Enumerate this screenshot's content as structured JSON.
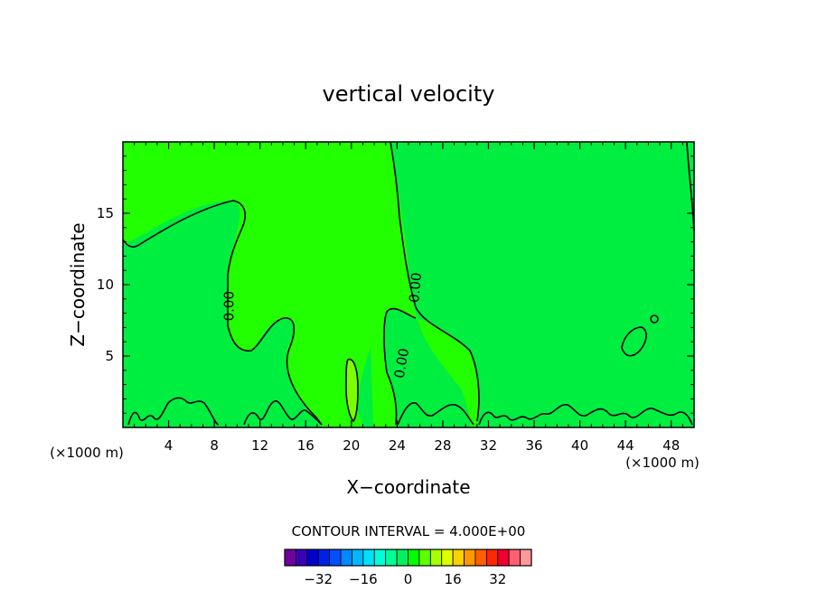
{
  "chart_data": {
    "type": "contour",
    "title": "vertical velocity",
    "xlabel": "X−coordinate",
    "ylabel": "Z−coordinate",
    "x_unit_left": "(×1000 m)",
    "x_unit_right": "(×1000 m)",
    "xlim": [
      0,
      50
    ],
    "ylim": [
      0,
      20
    ],
    "x_ticks": [
      4,
      8,
      12,
      16,
      20,
      24,
      28,
      32,
      36,
      40,
      44,
      48
    ],
    "x_tick_labels": [
      "4",
      "8",
      "12",
      "16",
      "20",
      "24",
      "28",
      "32",
      "36",
      "40",
      "44",
      "48"
    ],
    "y_ticks": [
      5,
      10,
      15
    ],
    "y_tick_labels": [
      "5",
      "10",
      "15"
    ],
    "contour_interval_label": "CONTOUR INTERVAL = 4.000E+00",
    "contour_labels": [
      {
        "text": "0.00",
        "x": 9.3,
        "y": 8.5,
        "angle": -90
      },
      {
        "text": "0.00",
        "x": 25.6,
        "y": 9.8,
        "angle": -85
      },
      {
        "text": "0.00",
        "x": 24.4,
        "y": 4.5,
        "angle": -80
      }
    ],
    "fill_colors": {
      "background_band": "#00ee40",
      "core_band": "#22ff00",
      "plume_band": "#7cff00"
    },
    "colorbar": {
      "colors": [
        "#7000a0",
        "#3a00b8",
        "#0000cc",
        "#0020e8",
        "#0050ff",
        "#0088ff",
        "#00b8ff",
        "#00e0ff",
        "#00ffd8",
        "#00ff98",
        "#00f060",
        "#00ff00",
        "#60ff00",
        "#a8ff00",
        "#e0ff00",
        "#ffd000",
        "#ff9800",
        "#ff6000",
        "#ff2800",
        "#f00030",
        "#ff6070",
        "#ff9898"
      ],
      "tick_values": [
        -32,
        -16,
        0,
        16,
        32
      ],
      "tick_labels": [
        "−32",
        "−16",
        "0",
        "16",
        "32"
      ]
    }
  }
}
